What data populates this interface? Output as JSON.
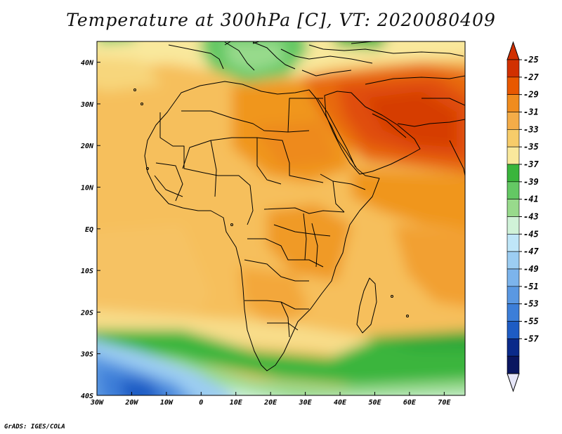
{
  "title": "Temperature at 300hPa [C], VT: 2020080409",
  "credit": "GrADS: IGES/COLA",
  "map": {
    "variable": "Temperature",
    "level": "300hPa",
    "units": "C",
    "valid_time": "2020080409",
    "lon_range": [
      -30,
      76
    ],
    "lat_range": [
      -40,
      45
    ],
    "lon_ticks": [
      {
        "value": -30,
        "label": "30W"
      },
      {
        "value": -20,
        "label": "20W"
      },
      {
        "value": -10,
        "label": "10W"
      },
      {
        "value": 0,
        "label": "0"
      },
      {
        "value": 10,
        "label": "10E"
      },
      {
        "value": 20,
        "label": "20E"
      },
      {
        "value": 30,
        "label": "30E"
      },
      {
        "value": 40,
        "label": "40E"
      },
      {
        "value": 50,
        "label": "50E"
      },
      {
        "value": 60,
        "label": "60E"
      },
      {
        "value": 70,
        "label": "70E"
      }
    ],
    "lat_ticks": [
      {
        "value": 40,
        "label": "40N"
      },
      {
        "value": 30,
        "label": "30N"
      },
      {
        "value": 20,
        "label": "20N"
      },
      {
        "value": 10,
        "label": "10N"
      },
      {
        "value": 0,
        "label": "EQ"
      },
      {
        "value": -10,
        "label": "10S"
      },
      {
        "value": -20,
        "label": "20S"
      },
      {
        "value": -30,
        "label": "30S"
      },
      {
        "value": -40,
        "label": "40S"
      }
    ],
    "features": {
      "warm_core": {
        "lon": 55,
        "lat": 25,
        "value": -26
      },
      "coolest_region": {
        "lon": -20,
        "lat": -38,
        "value": -53
      }
    }
  },
  "colorbar": {
    "labels": [
      "-25",
      "-27",
      "-29",
      "-31",
      "-33",
      "-35",
      "-37",
      "-39",
      "-41",
      "-43",
      "-45",
      "-47",
      "-49",
      "-51",
      "-53",
      "-55",
      "-57"
    ],
    "colors": [
      "#d13000",
      "#e85800",
      "#f08c1e",
      "#f4ac48",
      "#f7cc6a",
      "#f9e89c",
      "#3ab53c",
      "#64c864",
      "#98da8c",
      "#d0f2d8",
      "#bfe6f8",
      "#9ccdf2",
      "#7cb4ec",
      "#5a98e2",
      "#3c7ed8",
      "#1e5cc4",
      "#0a2a8a",
      "#0a1660"
    ],
    "tip_top_color": "#d13000",
    "tip_bottom_color": "#e6e6f8"
  }
}
